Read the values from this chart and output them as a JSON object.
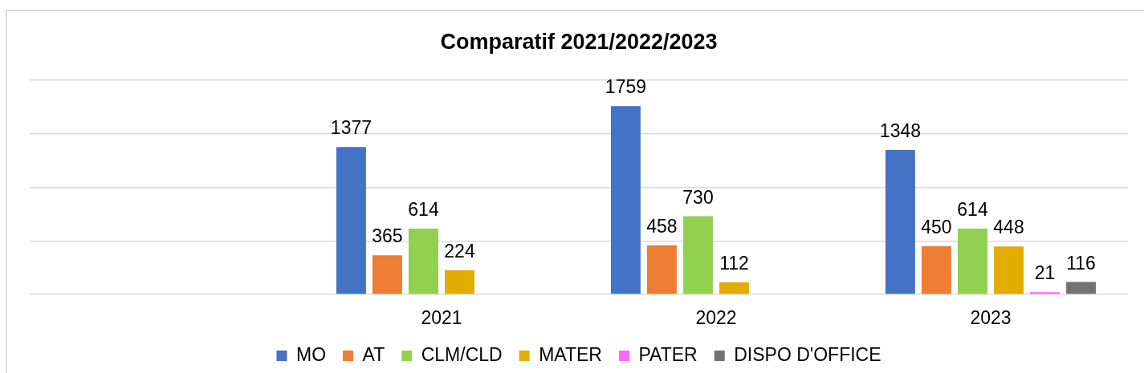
{
  "chart_data": {
    "type": "bar",
    "title": "Comparatif 2021/2022/2023",
    "categories": [
      null,
      "2021",
      "2022",
      "2023"
    ],
    "series": [
      {
        "name": "MO",
        "color": "#4472c4",
        "values": [
          null,
          1377,
          1759,
          1348
        ]
      },
      {
        "name": "AT",
        "color": "#ed7d31",
        "values": [
          null,
          365,
          458,
          450
        ]
      },
      {
        "name": "CLM/CLD",
        "color": "#92d050",
        "values": [
          null,
          614,
          730,
          614
        ]
      },
      {
        "name": "MATER",
        "color": "#e2ac00",
        "values": [
          null,
          224,
          112,
          448
        ]
      },
      {
        "name": "PATER",
        "color": "#ff66ff",
        "values": [
          null,
          null,
          null,
          21
        ]
      },
      {
        "name": "DISPO D'OFFICE",
        "color": "#767171",
        "values": [
          null,
          null,
          null,
          116
        ]
      }
    ],
    "ylim": [
      0,
      2000
    ],
    "yticks": [
      {
        "value": 0,
        "label": null
      },
      {
        "value": 500,
        "label": null
      },
      {
        "value": 1000,
        "label": null
      },
      {
        "value": 1500,
        "label": null
      },
      {
        "value": 2000,
        "label": null
      }
    ],
    "grid": "y",
    "legend": "bottom",
    "tick_labels": "x",
    "data_labels": true
  }
}
